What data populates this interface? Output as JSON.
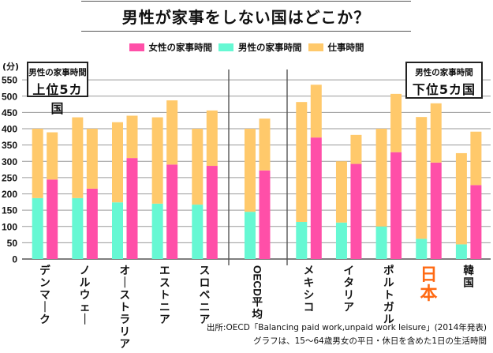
{
  "title": "男性が家事をしない国はどこか？",
  "legend": [
    {
      "label": "女性の家事時間",
      "color": "#ff4fa8"
    },
    {
      "label": "男性の家事時間",
      "color": "#66f8d3"
    },
    {
      "label": "仕事時間",
      "color": "#ffc96b"
    }
  ],
  "annotations": {
    "top5": {
      "line1": "男性の家事時間",
      "line2": "上位5カ国"
    },
    "bottom5": {
      "line1": "男性の家事時間",
      "line2": "下位5カ国"
    }
  },
  "source": {
    "line1": "出所:OECD「Balancing paid work,unpaid work leisure」(2014年発表)",
    "line2": "グラフは、15〜64歳男女の平日・休日を含めた1日の生活時間"
  },
  "chart_data": {
    "type": "bar",
    "stacked": true,
    "title": "男性が家事をしない国はどこか？",
    "ylabel": "(分)",
    "ylim": [
      0,
      550
    ],
    "yticks": [
      0,
      50,
      100,
      150,
      200,
      250,
      300,
      350,
      400,
      450,
      500,
      550
    ],
    "grid": true,
    "legend_position": "top-center",
    "highlight_category": "日本",
    "highlight_color": "#ff6a13",
    "groups": [
      "top5",
      "average",
      "bottom5"
    ],
    "categories": [
      {
        "name": "デンマーク",
        "group": "top5",
        "men_housework": 187,
        "men_work": 213,
        "women_housework": 244,
        "women_work": 145
      },
      {
        "name": "ノルウェー",
        "group": "top5",
        "men_housework": 187,
        "men_work": 248,
        "women_housework": 216,
        "women_work": 184
      },
      {
        "name": "オーストラリア",
        "group": "top5",
        "men_housework": 174,
        "men_work": 246,
        "women_housework": 310,
        "women_work": 130
      },
      {
        "name": "エストニア",
        "group": "top5",
        "men_housework": 170,
        "men_work": 265,
        "women_housework": 290,
        "women_work": 197
      },
      {
        "name": "スロベニア",
        "group": "top5",
        "men_housework": 167,
        "men_work": 233,
        "women_housework": 286,
        "women_work": 170
      },
      {
        "name": "OECD平均",
        "group": "average",
        "men_housework": 145,
        "men_work": 255,
        "women_housework": 272,
        "women_work": 159
      },
      {
        "name": "メキシコ",
        "group": "bottom5",
        "men_housework": 114,
        "men_work": 368,
        "women_housework": 373,
        "women_work": 162
      },
      {
        "name": "イタリア",
        "group": "bottom5",
        "men_housework": 112,
        "men_work": 188,
        "women_housework": 292,
        "women_work": 89
      },
      {
        "name": "ポルトガル",
        "group": "bottom5",
        "men_housework": 100,
        "men_work": 300,
        "women_housework": 328,
        "women_work": 179
      },
      {
        "name": "日本",
        "group": "bottom5",
        "men_housework": 62,
        "men_work": 374,
        "women_housework": 296,
        "women_work": 182
      },
      {
        "name": "韓国",
        "group": "bottom5",
        "men_housework": 45,
        "men_work": 280,
        "women_housework": 227,
        "women_work": 164
      }
    ],
    "series_colors": {
      "women_housework": "#ff4fa8",
      "men_housework": "#66f8d3",
      "work": "#ffc96b"
    }
  }
}
